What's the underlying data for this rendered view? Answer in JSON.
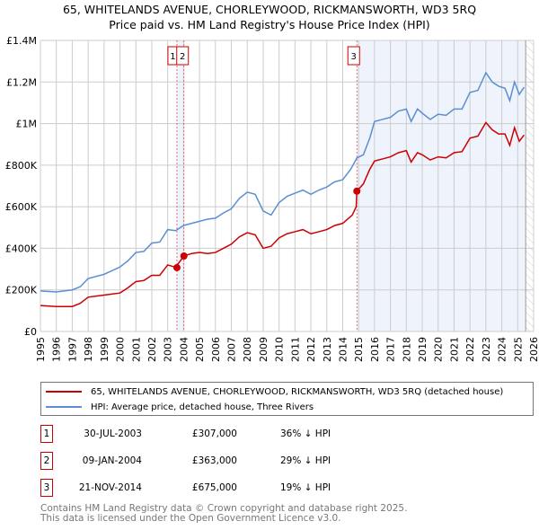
{
  "chart_data": {
    "type": "line",
    "title": "65, WHITELANDS AVENUE, CHORLEYWOOD, RICKMANSWORTH, WD3 5RQ",
    "subtitle": "Price paid vs. HM Land Registry's House Price Index (HPI)",
    "xlim": [
      1995,
      2026
    ],
    "ylim": [
      0,
      1400000
    ],
    "x_ticks": [
      "1995",
      "1996",
      "1997",
      "1998",
      "1999",
      "2000",
      "2001",
      "2002",
      "2003",
      "2004",
      "2005",
      "2006",
      "2007",
      "2008",
      "2009",
      "2010",
      "2011",
      "2012",
      "2013",
      "2014",
      "2015",
      "2016",
      "2017",
      "2018",
      "2019",
      "2020",
      "2021",
      "2022",
      "2023",
      "2024",
      "2025",
      "2026"
    ],
    "y_ticks": [
      {
        "v": 0,
        "label": "£0"
      },
      {
        "v": 200000,
        "label": "£200K"
      },
      {
        "v": 400000,
        "label": "£400K"
      },
      {
        "v": 600000,
        "label": "£600K"
      },
      {
        "v": 800000,
        "label": "£800K"
      },
      {
        "v": 1000000,
        "label": "£1M"
      },
      {
        "v": 1200000,
        "label": "£1.2M"
      },
      {
        "v": 1400000,
        "label": "£1.4M"
      }
    ],
    "grid": true,
    "forecast_hatch_from": 2025.5,
    "series": [
      {
        "name": "65, WHITELANDS AVENUE, CHORLEYWOOD, RICKMANSWORTH, WD3 5RQ (detached house)",
        "color": "#cc0000",
        "x": [
          1995,
          1996,
          1997,
          1997.5,
          1998,
          1999,
          2000,
          2000.5,
          2001,
          2001.5,
          2002,
          2002.5,
          2003,
          2003.58,
          2003.6,
          2004.02,
          2004.5,
          2005,
          2005.5,
          2006,
          2006.5,
          2007,
          2007.5,
          2008,
          2008.5,
          2009,
          2009.5,
          2010,
          2010.5,
          2011,
          2011.5,
          2012,
          2012.5,
          2013,
          2013.5,
          2014,
          2014.6,
          2014.85,
          2014.89,
          2015.3,
          2015.7,
          2016,
          2016.5,
          2017,
          2017.5,
          2018,
          2018.3,
          2018.7,
          2019,
          2019.5,
          2020,
          2020.5,
          2021,
          2021.5,
          2022,
          2022.5,
          2023,
          2023.4,
          2023.8,
          2024.2,
          2024.5,
          2024.8,
          2025.1,
          2025.4
        ],
        "y": [
          125000,
          120000,
          120000,
          135000,
          165000,
          175000,
          185000,
          210000,
          240000,
          245000,
          270000,
          270000,
          320000,
          307000,
          320000,
          363000,
          375000,
          380000,
          375000,
          380000,
          400000,
          420000,
          455000,
          475000,
          465000,
          400000,
          410000,
          450000,
          470000,
          480000,
          490000,
          470000,
          480000,
          490000,
          510000,
          520000,
          560000,
          600000,
          675000,
          710000,
          780000,
          820000,
          830000,
          840000,
          860000,
          870000,
          815000,
          860000,
          850000,
          825000,
          840000,
          835000,
          860000,
          865000,
          930000,
          940000,
          1005000,
          970000,
          950000,
          950000,
          895000,
          980000,
          915000,
          945000
        ]
      },
      {
        "name": "HPI: Average price, detached house, Three Rivers",
        "color": "#5b8fd0",
        "x": [
          1995,
          1996,
          1997,
          1997.5,
          1998,
          1999,
          2000,
          2000.5,
          2001,
          2001.5,
          2002,
          2002.5,
          2003,
          2003.5,
          2004,
          2004.5,
          2005,
          2005.5,
          2006,
          2006.5,
          2007,
          2007.5,
          2008,
          2008.5,
          2009,
          2009.5,
          2010,
          2010.5,
          2011,
          2011.5,
          2012,
          2012.5,
          2013,
          2013.5,
          2014,
          2014.5,
          2014.9,
          2015.3,
          2015.7,
          2016,
          2016.5,
          2017,
          2017.5,
          2018,
          2018.3,
          2018.7,
          2019,
          2019.5,
          2020,
          2020.5,
          2021,
          2021.5,
          2022,
          2022.5,
          2023,
          2023.4,
          2023.8,
          2024.2,
          2024.5,
          2024.8,
          2025.1,
          2025.4
        ],
        "y": [
          195000,
          190000,
          200000,
          215000,
          255000,
          275000,
          310000,
          340000,
          380000,
          385000,
          425000,
          430000,
          490000,
          485000,
          510000,
          520000,
          530000,
          540000,
          545000,
          570000,
          590000,
          640000,
          670000,
          660000,
          580000,
          560000,
          620000,
          650000,
          665000,
          680000,
          660000,
          680000,
          695000,
          720000,
          730000,
          780000,
          835000,
          850000,
          930000,
          1010000,
          1020000,
          1030000,
          1060000,
          1070000,
          1010000,
          1070000,
          1050000,
          1020000,
          1045000,
          1040000,
          1070000,
          1070000,
          1150000,
          1160000,
          1245000,
          1200000,
          1180000,
          1170000,
          1110000,
          1200000,
          1140000,
          1175000
        ]
      }
    ],
    "sales": [
      {
        "id": "1",
        "x": 2003.58,
        "y": 307000,
        "date": "30-JUL-2003",
        "price": "£307,000",
        "hpi": "36% ↓ HPI"
      },
      {
        "id": "2",
        "x": 2004.02,
        "y": 363000,
        "date": "09-JAN-2004",
        "price": "£363,000",
        "hpi": "29% ↓ HPI"
      },
      {
        "id": "3",
        "x": 2014.89,
        "y": 675000,
        "date": "21-NOV-2014",
        "price": "£675,000",
        "hpi": "19% ↓ HPI"
      }
    ]
  },
  "legend": {
    "property": "65, WHITELANDS AVENUE, CHORLEYWOOD, RICKMANSWORTH, WD3 5RQ (detached house)",
    "hpi": "HPI: Average price, detached house, Three Rivers"
  },
  "footer": {
    "line1": "Contains HM Land Registry data © Crown copyright and database right 2025.",
    "line2": "This data is licensed under the Open Government Licence v3.0."
  },
  "colors": {
    "property": "#cc0000",
    "hpi": "#5b8fd0",
    "shade": "#eef3fc"
  }
}
